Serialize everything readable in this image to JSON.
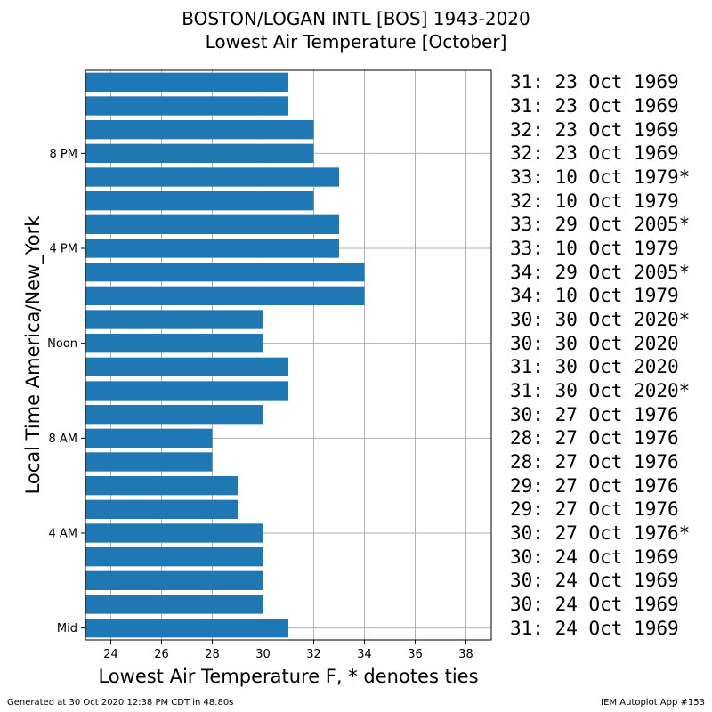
{
  "title_line1": "BOSTON/LOGAN INTL [BOS] 1943-2020",
  "title_line2": "Lowest Air Temperature [October]",
  "footer_left": "Generated at 30 Oct 2020 12:38 PM CDT in 48.80s",
  "footer_right": "IEM Autoplot App #153",
  "chart_data": {
    "type": "bar",
    "orientation": "horizontal",
    "xlabel": "Lowest Air Temperature F, * denotes ties",
    "ylabel": "Local Time America/New_York",
    "xlim": [
      23,
      39
    ],
    "xticks": [
      24,
      26,
      28,
      30,
      32,
      34,
      36,
      38
    ],
    "ylim": [
      -0.5,
      23.5
    ],
    "yticks": [
      {
        "hour": 0,
        "label": "Mid"
      },
      {
        "hour": 4,
        "label": "4 AM"
      },
      {
        "hour": 8,
        "label": "8 AM"
      },
      {
        "hour": 12,
        "label": "Noon"
      },
      {
        "hour": 16,
        "label": "4 PM"
      },
      {
        "hour": 20,
        "label": "8 PM"
      }
    ],
    "grid": true,
    "color": "#1f77b4",
    "hours": [
      0,
      1,
      2,
      3,
      4,
      5,
      6,
      7,
      8,
      9,
      10,
      11,
      12,
      13,
      14,
      15,
      16,
      17,
      18,
      19,
      20,
      21,
      22,
      23
    ],
    "values": [
      31,
      30,
      30,
      30,
      30,
      29,
      29,
      28,
      28,
      30,
      31,
      31,
      30,
      30,
      34,
      34,
      33,
      33,
      32,
      33,
      32,
      32,
      31,
      31
    ],
    "annotations": [
      "31: 24 Oct 1969",
      "30: 24 Oct 1969",
      "30: 24 Oct 1969",
      "30: 24 Oct 1969",
      "30: 27 Oct 1976*",
      "29: 27 Oct 1976",
      "29: 27 Oct 1976",
      "28: 27 Oct 1976",
      "28: 27 Oct 1976",
      "30: 27 Oct 1976",
      "31: 30 Oct 2020*",
      "31: 30 Oct 2020",
      "30: 30 Oct 2020",
      "30: 30 Oct 2020*",
      "34: 10 Oct 1979",
      "34: 29 Oct 2005*",
      "33: 10 Oct 1979",
      "33: 29 Oct 2005*",
      "32: 10 Oct 1979",
      "33: 10 Oct 1979*",
      "32: 23 Oct 1969",
      "32: 23 Oct 1969",
      "31: 23 Oct 1969",
      "31: 23 Oct 1969"
    ]
  }
}
